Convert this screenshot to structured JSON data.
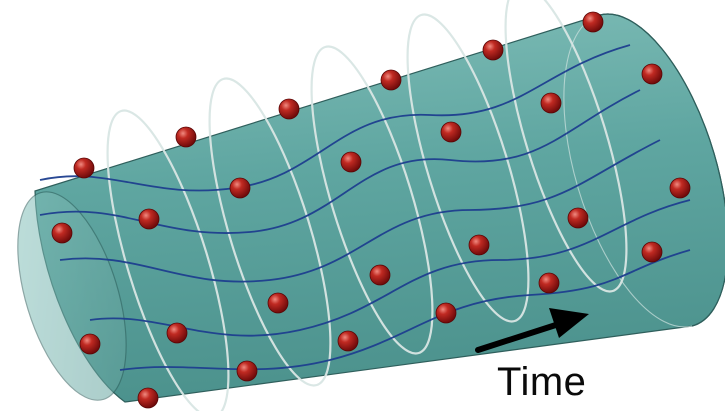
{
  "figure": {
    "time_label": "Time",
    "colors": {
      "cylinder_fill": "#5fa6a1",
      "cylinder_dark": "#3f8581",
      "cylinder_light": "#8cc7c1",
      "ring_color": "#d9e6e4",
      "helix_color": "#1e3f8f",
      "bead_color": "#9b1414",
      "arrow_color": "#000000"
    },
    "arrow": {
      "direction": "right-up"
    }
  }
}
